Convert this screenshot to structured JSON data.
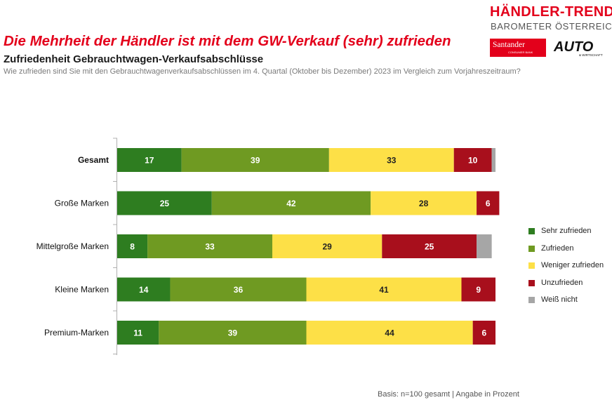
{
  "header": {
    "headline": "Die Mehrheit der Händler ist mit dem GW-Verkauf (sehr) zufrieden",
    "subtitle": "Zufriedenheit Gebrauchtwagen-Verkaufsabschlüsse",
    "question": "Wie zufrieden sind Sie mit den Gebrauchtwagenverkaufsabschlüssen im 4. Quartal (Oktober bis Dezember) 2023 im Vergleich zum Vorjahreszeitraum?"
  },
  "logo": {
    "line1": "HÄNDLER-TREND",
    "line2": "BAROMETER ÖSTERREICH",
    "santander": "Santander",
    "santander_sub": "CONSUMER BANK",
    "auto": "AUTO",
    "auto_sub": "& WIRTSCHAFT"
  },
  "footer": {
    "basis": "Basis: n=100 gesamt | Angabe in Prozent"
  },
  "colors": {
    "sehr_zufrieden": "#2e7d20",
    "zufrieden": "#6f9a22",
    "weniger_zufrieden": "#fde047",
    "unzufrieden": "#a80f1c",
    "weiss_nicht": "#a6a6a6"
  },
  "chart_data": {
    "type": "bar",
    "orientation": "horizontal",
    "stacked": true,
    "title": "",
    "xlabel": "",
    "ylabel": "",
    "xlim": [
      0,
      100
    ],
    "grid": false,
    "legend_position": "right",
    "categories": [
      "Gesamt",
      "Große Marken",
      "Mittelgroße Marken",
      "Kleine Marken",
      "Premium-Marken"
    ],
    "emphasized_category": "Gesamt",
    "series": [
      {
        "name": "Sehr zufrieden",
        "color": "#2e7d20",
        "values": [
          17,
          25,
          8,
          14,
          11
        ]
      },
      {
        "name": "Zufrieden",
        "color": "#6f9a22",
        "values": [
          39,
          42,
          33,
          36,
          39
        ]
      },
      {
        "name": "Weniger zufrieden",
        "color": "#fde047",
        "values": [
          33,
          28,
          29,
          41,
          44
        ]
      },
      {
        "name": "Unzufrieden",
        "color": "#a80f1c",
        "values": [
          10,
          6,
          25,
          9,
          6
        ]
      },
      {
        "name": "Weiß nicht",
        "color": "#a6a6a6",
        "values": [
          1,
          0,
          4,
          0,
          0
        ]
      }
    ],
    "data_labels": [
      [
        17,
        39,
        33,
        10,
        null
      ],
      [
        25,
        42,
        28,
        6,
        null
      ],
      [
        8,
        33,
        29,
        25,
        null
      ],
      [
        14,
        36,
        41,
        9,
        null
      ],
      [
        11,
        39,
        44,
        6,
        null
      ]
    ]
  }
}
